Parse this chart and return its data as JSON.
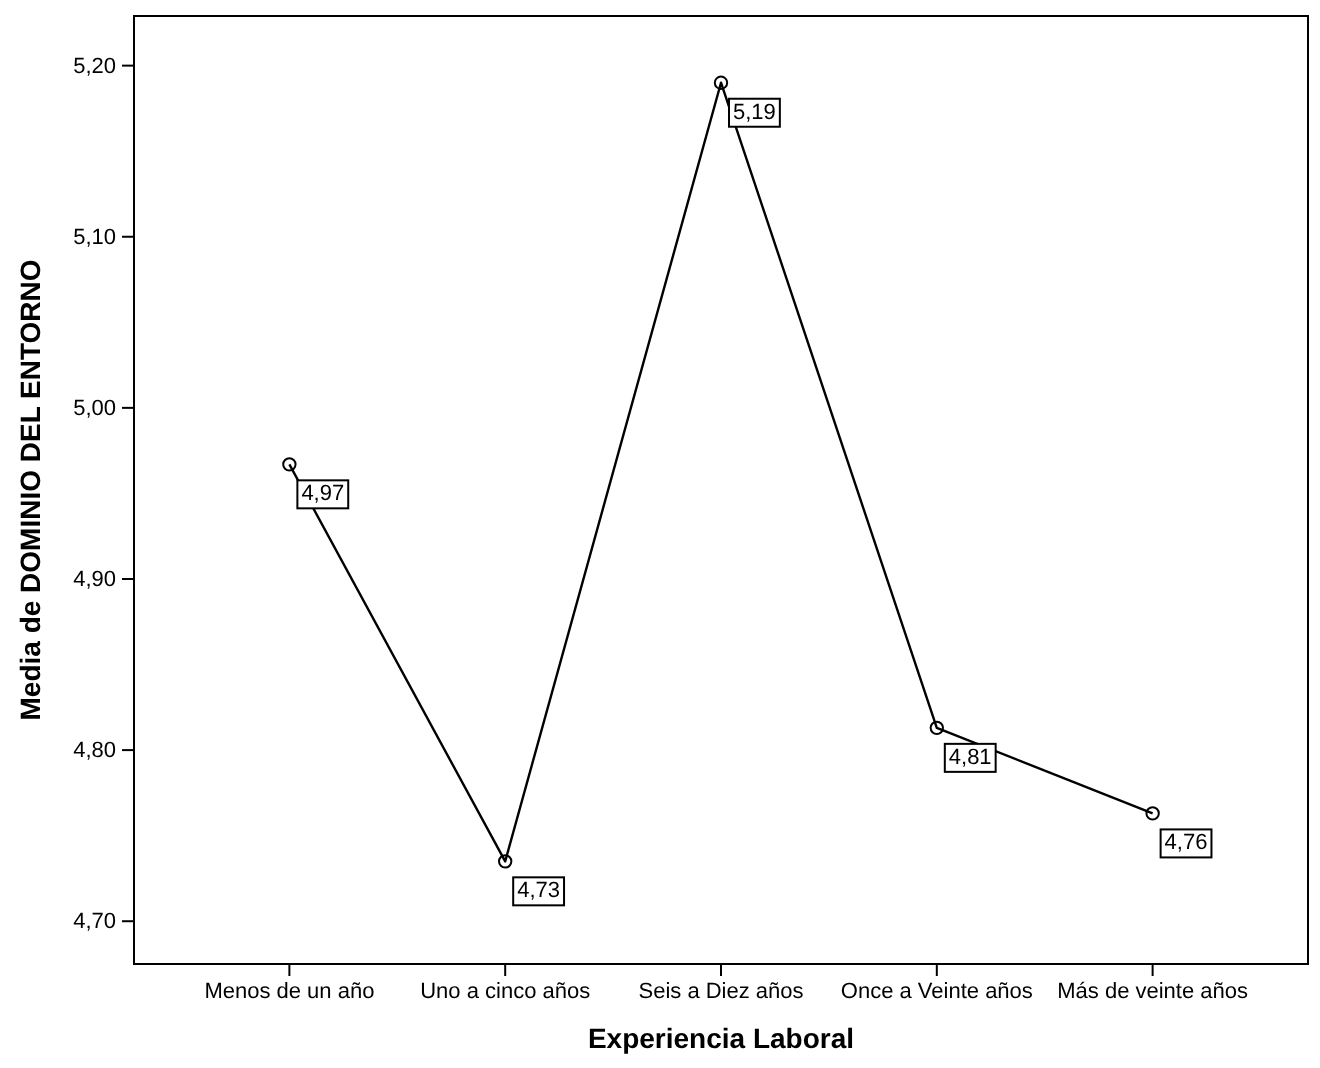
{
  "chart_data": {
    "type": "line",
    "xlabel": "Experiencia Laboral",
    "ylabel": "Media de DOMINIO DEL ENTORNO",
    "categories": [
      "Menos de un año",
      "Uno a cinco años",
      "Seis a Diez años",
      "Once a Veinte años",
      "Más de veinte años"
    ],
    "series": [
      {
        "color": "#000000",
        "values": [
          4.967,
          4.735,
          5.19,
          4.813,
          4.763
        ],
        "value_labels": [
          "4,97",
          "4,73",
          "5,19",
          "4,81",
          "4,76"
        ]
      }
    ],
    "ylim": [
      4.675,
      5.229
    ],
    "yticks": [
      {
        "value": 4.7,
        "label": "4,70"
      },
      {
        "value": 4.8,
        "label": "4,80"
      },
      {
        "value": 4.9,
        "label": "4,90"
      },
      {
        "value": 5.0,
        "label": "5,00"
      },
      {
        "value": 5.1,
        "label": "5,10"
      },
      {
        "value": 5.2,
        "label": "5,20"
      }
    ],
    "marker": "circle",
    "line_style": "solid"
  }
}
